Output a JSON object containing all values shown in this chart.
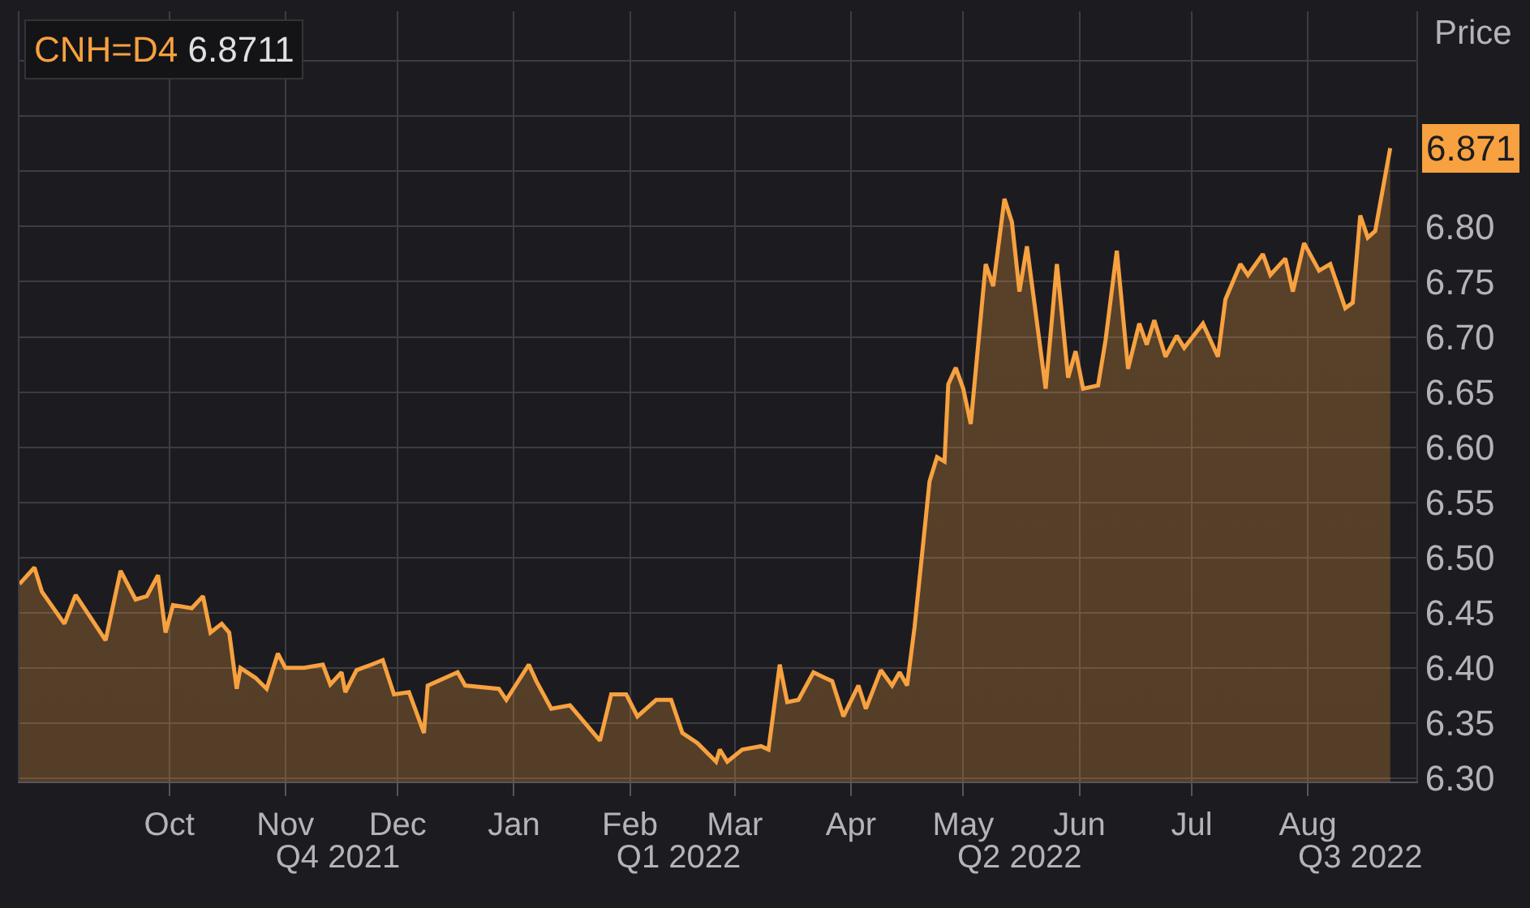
{
  "chart_data": {
    "type": "area",
    "title": "CNH=D4",
    "subtitle": "6.8711",
    "ylabel": "Price",
    "color": "#f7a140",
    "x": [
      "2021-08-22",
      "2021-08-26",
      "2021-08-28",
      "2021-09-03",
      "2021-09-06",
      "2021-09-14",
      "2021-09-18",
      "2021-09-22",
      "2021-09-25",
      "2021-09-28",
      "2021-09-30",
      "2021-10-02",
      "2021-10-07",
      "2021-10-10",
      "2021-10-12",
      "2021-10-15",
      "2021-10-17",
      "2021-10-19",
      "2021-10-20",
      "2021-10-24",
      "2021-10-27",
      "2021-10-30",
      "2021-11-01",
      "2021-11-06",
      "2021-11-11",
      "2021-11-13",
      "2021-11-16",
      "2021-11-17",
      "2021-11-20",
      "2021-11-24",
      "2021-11-27",
      "2021-11-30",
      "2021-12-04",
      "2021-12-08",
      "2021-12-09",
      "2021-12-17",
      "2021-12-19",
      "2021-12-28",
      "2021-12-30",
      "2022-01-05",
      "2022-01-07",
      "2022-01-11",
      "2022-01-16",
      "2022-01-24",
      "2022-01-27",
      "2022-01-31",
      "2022-02-03",
      "2022-02-08",
      "2022-02-12",
      "2022-02-15",
      "2022-02-19",
      "2022-02-24",
      "2022-02-25",
      "2022-02-27",
      "2022-03-03",
      "2022-03-08",
      "2022-03-10",
      "2022-03-13",
      "2022-03-15",
      "2022-03-18",
      "2022-03-22",
      "2022-03-25",
      "2022-03-27",
      "2022-03-30",
      "2022-04-03",
      "2022-04-05",
      "2022-04-09",
      "2022-04-12",
      "2022-04-14",
      "2022-04-16",
      "2022-04-18",
      "2022-04-22",
      "2022-04-24",
      "2022-04-26",
      "2022-04-27",
      "2022-04-29",
      "2022-05-01",
      "2022-05-03",
      "2022-05-07",
      "2022-05-09",
      "2022-05-12",
      "2022-05-14",
      "2022-05-16",
      "2022-05-18",
      "2022-05-23",
      "2022-05-26",
      "2022-05-29",
      "2022-05-31",
      "2022-06-02",
      "2022-06-06",
      "2022-06-08",
      "2022-06-11",
      "2022-06-14",
      "2022-06-17",
      "2022-06-19",
      "2022-06-21",
      "2022-06-24",
      "2022-06-27",
      "2022-06-29",
      "2022-07-04",
      "2022-07-08",
      "2022-07-10",
      "2022-07-14",
      "2022-07-16",
      "2022-07-20",
      "2022-07-22",
      "2022-07-26",
      "2022-07-28",
      "2022-07-31",
      "2022-08-04",
      "2022-08-07",
      "2022-08-11",
      "2022-08-13",
      "2022-08-15",
      "2022-08-17",
      "2022-08-19",
      "2022-08-23"
    ],
    "values": [
      6.476,
      6.491,
      6.469,
      6.44,
      6.466,
      6.425,
      6.488,
      6.462,
      6.465,
      6.484,
      6.432,
      6.457,
      6.454,
      6.465,
      6.432,
      6.44,
      6.432,
      6.381,
      6.4,
      6.391,
      6.381,
      6.413,
      6.4,
      6.4,
      6.403,
      6.385,
      6.396,
      6.378,
      6.398,
      6.403,
      6.407,
      6.376,
      6.378,
      6.341,
      6.384,
      6.396,
      6.384,
      6.381,
      6.371,
      6.403,
      6.388,
      6.363,
      6.366,
      6.334,
      6.376,
      6.376,
      6.356,
      6.371,
      6.371,
      6.341,
      6.332,
      6.315,
      6.326,
      6.315,
      6.326,
      6.329,
      6.326,
      6.403,
      6.369,
      6.371,
      6.396,
      6.391,
      6.388,
      6.356,
      6.384,
      6.363,
      6.398,
      6.384,
      6.396,
      6.384,
      6.437,
      6.569,
      6.591,
      6.587,
      6.657,
      6.672,
      6.653,
      6.621,
      6.766,
      6.746,
      6.825,
      6.804,
      6.741,
      6.782,
      6.653,
      6.766,
      6.663,
      6.687,
      6.653,
      6.656,
      6.697,
      6.778,
      6.671,
      6.712,
      6.693,
      6.715,
      6.682,
      6.701,
      6.69,
      6.712,
      6.682,
      6.734,
      6.766,
      6.756,
      6.775,
      6.756,
      6.771,
      6.741,
      6.785,
      6.76,
      6.766,
      6.726,
      6.731,
      6.81,
      6.79,
      6.796,
      6.871
    ],
    "xlim": [
      "2021-08-22",
      "2022-08-30"
    ],
    "xticks": [
      {
        "value": "2021-10-01",
        "label": "Oct"
      },
      {
        "value": "2021-11-01",
        "label": "Nov"
      },
      {
        "value": "2021-12-01",
        "label": "Dec"
      },
      {
        "value": "2022-01-01",
        "label": "Jan"
      },
      {
        "value": "2022-02-01",
        "label": "Feb"
      },
      {
        "value": "2022-03-01",
        "label": "Mar"
      },
      {
        "value": "2022-04-01",
        "label": "Apr"
      },
      {
        "value": "2022-05-01",
        "label": "May"
      },
      {
        "value": "2022-06-01",
        "label": "Jun"
      },
      {
        "value": "2022-07-01",
        "label": "Jul"
      },
      {
        "value": "2022-08-01",
        "label": "Aug"
      }
    ],
    "x2lim": [
      "2021-08-22",
      "2022-08-30"
    ],
    "x2ticks": [
      {
        "value": "2021-11-15",
        "label": "Q4 2021"
      },
      {
        "value": "2022-02-14",
        "label": "Q1 2022"
      },
      {
        "value": "2022-05-16",
        "label": "Q2 2022"
      },
      {
        "value": "2022-08-15",
        "label": "Q3 2022"
      }
    ],
    "ylim": [
      6.297,
      6.995
    ],
    "yticks": [
      {
        "value": 6.3,
        "label": "6.30"
      },
      {
        "value": 6.35,
        "label": "6.35"
      },
      {
        "value": 6.4,
        "label": "6.40"
      },
      {
        "value": 6.45,
        "label": "6.45"
      },
      {
        "value": 6.5,
        "label": "6.50"
      },
      {
        "value": 6.55,
        "label": "6.55"
      },
      {
        "value": 6.6,
        "label": "6.60"
      },
      {
        "value": 6.65,
        "label": "6.65"
      },
      {
        "value": 6.7,
        "label": "6.70"
      },
      {
        "value": 6.75,
        "label": "6.75"
      },
      {
        "value": 6.8,
        "label": "6.80"
      },
      {
        "value": 6.85,
        "label": null
      },
      {
        "value": 6.9,
        "label": null
      },
      {
        "value": 6.95,
        "label": null
      }
    ],
    "grid": true,
    "annotations": [
      "6.871"
    ]
  }
}
